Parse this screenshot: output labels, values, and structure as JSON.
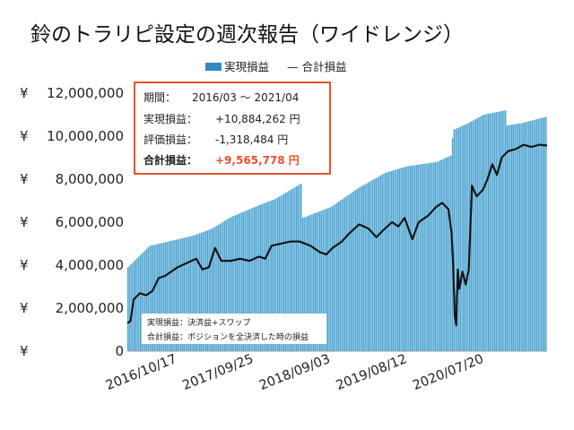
{
  "chart_data": {
    "type": "bar",
    "title": "鈴のトラリピ設定の週次報告（ワイドレンジ）",
    "legend": {
      "bar_label": "実現損益",
      "line_label": "— 合計損益",
      "placement": "top-center"
    },
    "ylim": [
      0,
      12000000
    ],
    "y_ticks": [
      {
        "value": 0,
        "label": "¥ 0"
      },
      {
        "value": 2000000,
        "label": "¥ 2,000,000"
      },
      {
        "value": 4000000,
        "label": "¥ 4,000,000"
      },
      {
        "value": 6000000,
        "label": "¥ 6,000,000"
      },
      {
        "value": 8000000,
        "label": "¥ 8,000,000"
      },
      {
        "value": 10000000,
        "label": "¥ 10,000,000"
      },
      {
        "value": 12000000,
        "label": "¥ 12,000,000"
      }
    ],
    "x_ticks": [
      {
        "date": "2016-10-17",
        "label": "2016/10/17"
      },
      {
        "date": "2017-09-25",
        "label": "2017/09/25"
      },
      {
        "date": "2018-09-03",
        "label": "2018/09/03"
      },
      {
        "date": "2019-08-12",
        "label": "2019/08/12"
      },
      {
        "date": "2020-07-20",
        "label": "2020/07/20"
      }
    ],
    "x_range": [
      "2016-03-07",
      "2021-04-26"
    ],
    "grid": false,
    "colors": {
      "bars": "#4ba3d1",
      "bar_edge": "#2f87b8",
      "line": "#111111",
      "accent": "#e8512a",
      "box_border": "#e8512a"
    },
    "series": [
      {
        "name": "実現損益",
        "kind": "bar",
        "interpolation": "linear",
        "points": [
          [
            "2016-03-07",
            3900000
          ],
          [
            "2016-04-25",
            4400000
          ],
          [
            "2016-06-13",
            4900000
          ],
          [
            "2016-10-17",
            5200000
          ],
          [
            "2017-01-02",
            5400000
          ],
          [
            "2017-03-20",
            5700000
          ],
          [
            "2017-06-05",
            6200000
          ],
          [
            "2017-09-25",
            6700000
          ],
          [
            "2018-01-01",
            7100000
          ],
          [
            "2018-04-23",
            7800000
          ],
          [
            "2018-04-30",
            6200000
          ],
          [
            "2018-09-03",
            6700000
          ],
          [
            "2019-01-07",
            7600000
          ],
          [
            "2019-05-06",
            8300000
          ],
          [
            "2019-08-12",
            8600000
          ],
          [
            "2019-12-23",
            8800000
          ],
          [
            "2020-02-24",
            9100000
          ],
          [
            "2020-03-02",
            9900000
          ],
          [
            "2020-03-09",
            10300000
          ],
          [
            "2020-05-11",
            10600000
          ],
          [
            "2020-07-20",
            11000000
          ],
          [
            "2020-10-26",
            11200000
          ],
          [
            "2020-11-02",
            10500000
          ],
          [
            "2021-01-04",
            10600000
          ],
          [
            "2021-04-26",
            10900000
          ]
        ]
      },
      {
        "name": "合計損益",
        "kind": "line",
        "points": [
          [
            "2016-03-07",
            1300000
          ],
          [
            "2016-03-21",
            1400000
          ],
          [
            "2016-04-04",
            2400000
          ],
          [
            "2016-05-02",
            2700000
          ],
          [
            "2016-05-30",
            2600000
          ],
          [
            "2016-06-27",
            2800000
          ],
          [
            "2016-07-25",
            3400000
          ],
          [
            "2016-08-22",
            3500000
          ],
          [
            "2016-09-19",
            3700000
          ],
          [
            "2016-10-17",
            3900000
          ],
          [
            "2016-11-28",
            4100000
          ],
          [
            "2017-01-09",
            4300000
          ],
          [
            "2017-02-06",
            3800000
          ],
          [
            "2017-03-06",
            3900000
          ],
          [
            "2017-04-03",
            4800000
          ],
          [
            "2017-05-01",
            4200000
          ],
          [
            "2017-06-12",
            4200000
          ],
          [
            "2017-07-24",
            4300000
          ],
          [
            "2017-09-04",
            4200000
          ],
          [
            "2017-10-16",
            4400000
          ],
          [
            "2017-11-13",
            4300000
          ],
          [
            "2017-12-11",
            4900000
          ],
          [
            "2018-01-22",
            5000000
          ],
          [
            "2018-03-05",
            5100000
          ],
          [
            "2018-04-16",
            5100000
          ],
          [
            "2018-06-04",
            4900000
          ],
          [
            "2018-07-16",
            4600000
          ],
          [
            "2018-08-13",
            4500000
          ],
          [
            "2018-09-10",
            4800000
          ],
          [
            "2018-10-22",
            5100000
          ],
          [
            "2018-11-26",
            5500000
          ],
          [
            "2019-01-07",
            5900000
          ],
          [
            "2019-02-18",
            5700000
          ],
          [
            "2019-03-25",
            5300000
          ],
          [
            "2019-04-22",
            5600000
          ],
          [
            "2019-06-03",
            6000000
          ],
          [
            "2019-07-01",
            5800000
          ],
          [
            "2019-07-29",
            6200000
          ],
          [
            "2019-09-02",
            5200000
          ],
          [
            "2019-09-30",
            6000000
          ],
          [
            "2019-11-11",
            6300000
          ],
          [
            "2019-12-16",
            6700000
          ],
          [
            "2020-01-13",
            6900000
          ],
          [
            "2020-02-10",
            6600000
          ],
          [
            "2020-02-24",
            5500000
          ],
          [
            "2020-03-02",
            4100000
          ],
          [
            "2020-03-09",
            1700000
          ],
          [
            "2020-03-16",
            1200000
          ],
          [
            "2020-03-23",
            3800000
          ],
          [
            "2020-03-30",
            2900000
          ],
          [
            "2020-04-13",
            3700000
          ],
          [
            "2020-04-27",
            3100000
          ],
          [
            "2020-05-11",
            3800000
          ],
          [
            "2020-05-25",
            7700000
          ],
          [
            "2020-06-15",
            7200000
          ],
          [
            "2020-07-13",
            7500000
          ],
          [
            "2020-08-03",
            8000000
          ],
          [
            "2020-08-24",
            8700000
          ],
          [
            "2020-09-14",
            8200000
          ],
          [
            "2020-10-05",
            9000000
          ],
          [
            "2020-11-02",
            9300000
          ],
          [
            "2020-12-07",
            9400000
          ],
          [
            "2021-01-11",
            9600000
          ],
          [
            "2021-02-15",
            9500000
          ],
          [
            "2021-03-22",
            9600000
          ],
          [
            "2021-04-26",
            9566000
          ]
        ]
      }
    ],
    "summary_box": {
      "period_label": "期間：",
      "period_value": "2016/03 ～ 2021/04",
      "realized_label": "実現損益：",
      "realized_value": "+10,884,262 円",
      "unrealized_label": "評価損益：",
      "unrealized_value": "-1,318,484 円",
      "total_label": "合計損益：",
      "total_value": "+9,565,778 円"
    },
    "notes": [
      "実現損益：決済益+スワップ",
      "合計損益：ポジションを全決済した時の損益"
    ]
  }
}
